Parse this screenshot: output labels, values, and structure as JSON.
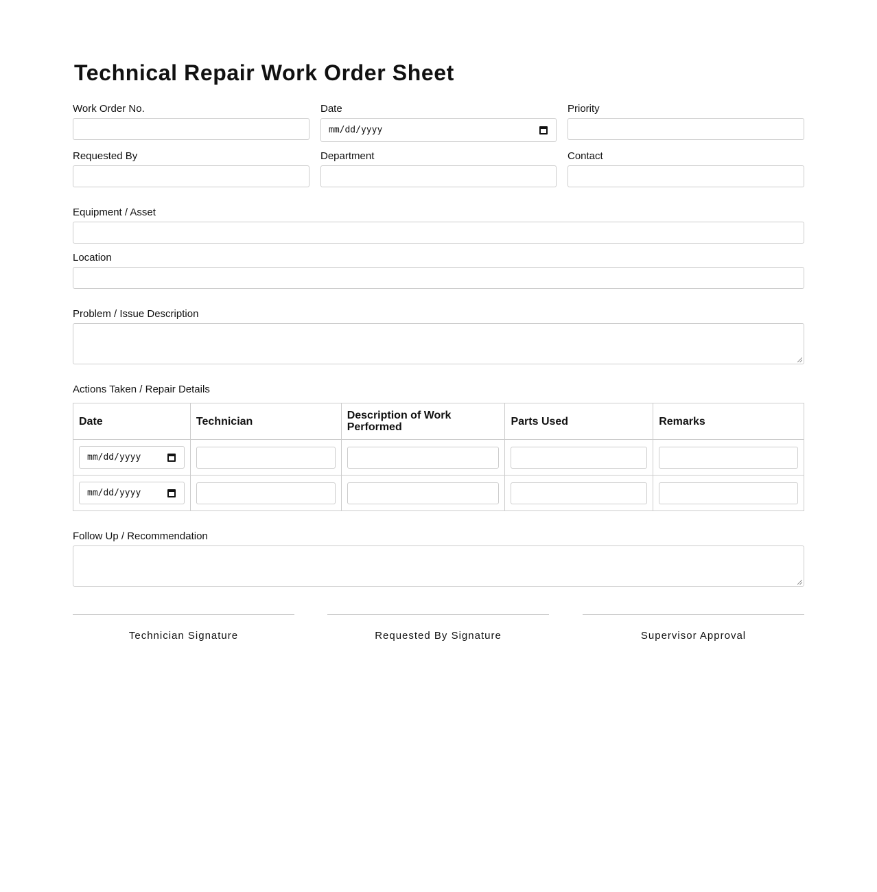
{
  "title": "Technical Repair Work Order Sheet",
  "fields": {
    "work_order_no": "Work Order No.",
    "date": "Date",
    "date_placeholder": "mm/dd/yyyy",
    "priority": "Priority",
    "requested_by": "Requested By",
    "department": "Department",
    "contact": "Contact",
    "equipment": "Equipment / Asset",
    "location": "Location",
    "problem": "Problem / Issue Description",
    "actions": "Actions Taken / Repair Details",
    "follow_up": "Follow Up / Recommendation"
  },
  "table": {
    "headers": [
      "Date",
      "Technician",
      "Description of Work Performed",
      "Parts Used",
      "Remarks"
    ],
    "date_placeholder": "mm/dd/yyyy"
  },
  "signatures": [
    "Technician Signature",
    "Requested By Signature",
    "Supervisor Approval"
  ]
}
